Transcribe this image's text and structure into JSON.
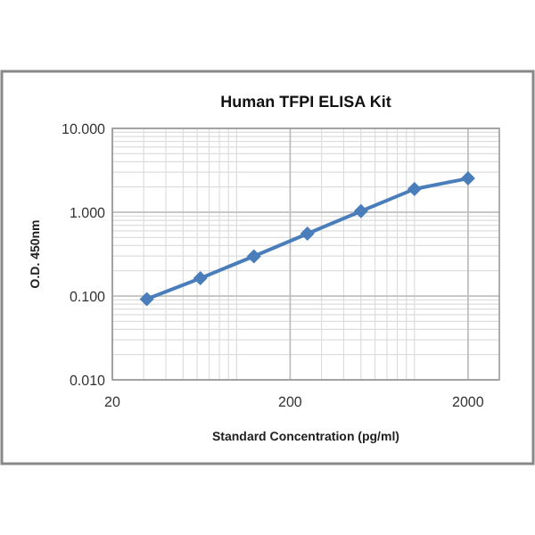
{
  "chart_data": {
    "type": "line",
    "title": "Human TFPI ELISA Kit",
    "xlabel": "Standard Concentration (pg/ml)",
    "ylabel": "O.D.  450nm",
    "x": [
      31.25,
      62.5,
      125,
      250,
      500,
      1000,
      2000
    ],
    "series": [
      {
        "color": "#4a7ebb",
        "values": [
          0.092,
          0.163,
          0.298,
          0.555,
          1.03,
          1.89,
          2.53
        ]
      }
    ],
    "log": "xy",
    "xlim": [
      20,
      3000
    ],
    "xticks": [
      20,
      200,
      2000
    ],
    "ylim": [
      0.01,
      10
    ],
    "yticks": [
      {
        "value": 0.01,
        "label": "0.010"
      },
      {
        "value": 0.1,
        "label": "0.100"
      },
      {
        "value": 1,
        "label": "1.000"
      },
      {
        "value": 10,
        "label": "10.000"
      }
    ],
    "grid": true,
    "marker": "diamond",
    "line_style": "solid"
  }
}
